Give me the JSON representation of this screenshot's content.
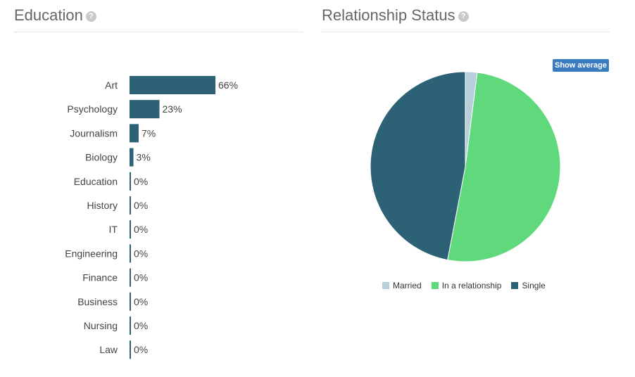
{
  "education": {
    "title": "Education",
    "help_icon": "question-circle-icon"
  },
  "relationship": {
    "title": "Relationship Status",
    "help_icon": "question-circle-icon",
    "show_average_label": "Show average"
  },
  "colors": {
    "bar": "#2d6175",
    "married": "#b7cfd9",
    "in_relationship": "#5fd97b",
    "single": "#2d6175"
  },
  "chart_data": [
    {
      "type": "bar",
      "orientation": "horizontal",
      "title": "Education",
      "categories": [
        "Art",
        "Psychology",
        "Journalism",
        "Biology",
        "Education",
        "History",
        "IT",
        "Engineering",
        "Finance",
        "Business",
        "Nursing",
        "Law"
      ],
      "values": [
        66,
        23,
        7,
        3,
        0,
        0,
        0,
        0,
        0,
        0,
        0,
        0
      ],
      "value_labels": [
        "66%",
        "23%",
        "7%",
        "3%",
        "0%",
        "0%",
        "0%",
        "0%",
        "0%",
        "0%",
        "0%",
        "0%"
      ],
      "unit": "%"
    },
    {
      "type": "pie",
      "title": "Relationship Status",
      "labels": [
        "Married",
        "In a relationship",
        "Single"
      ],
      "values": [
        2,
        51,
        47
      ],
      "legend_position": "bottom"
    }
  ]
}
